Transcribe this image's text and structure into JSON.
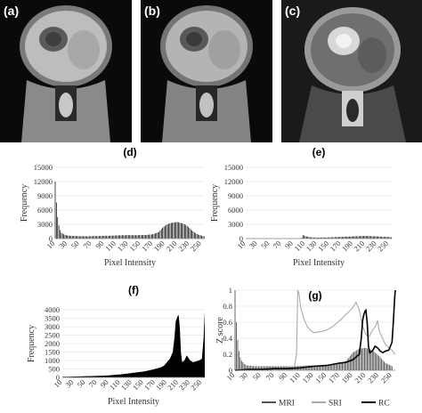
{
  "image_panels": [
    {
      "label": "(a)",
      "style": "mri"
    },
    {
      "label": "(b)",
      "style": "sri"
    },
    {
      "label": "(c)",
      "style": "rc"
    }
  ],
  "colors": {
    "histogram_fill": "#000000",
    "zscore_mri": "#555555",
    "zscore_sri": "#aaaaaa",
    "zscore_rc": "#000000",
    "gridline": "#d9d9d9",
    "axis_text": "#333333"
  },
  "chart_data": [
    {
      "id": "d",
      "type": "bar",
      "label": "(d)",
      "xlabel": "Pixel Intensity",
      "ylabel": "Frequency",
      "ylim": [
        0,
        15000
      ],
      "yticks": [
        0,
        3000,
        6000,
        9000,
        12000,
        15000
      ],
      "xlim": [
        10,
        255
      ],
      "xticks": [
        "10",
        "30",
        "50",
        "70",
        "90",
        "110",
        "130",
        "150",
        "170",
        "190",
        "210",
        "230",
        "250"
      ],
      "grid": true,
      "values": [
        [
          10,
          12000
        ],
        [
          12,
          7600
        ],
        [
          14,
          4500
        ],
        [
          16,
          2800
        ],
        [
          18,
          1800
        ],
        [
          20,
          1200
        ],
        [
          24,
          900
        ],
        [
          28,
          700
        ],
        [
          32,
          600
        ],
        [
          40,
          550
        ],
        [
          50,
          500
        ],
        [
          60,
          480
        ],
        [
          70,
          500
        ],
        [
          80,
          520
        ],
        [
          90,
          560
        ],
        [
          100,
          600
        ],
        [
          110,
          650
        ],
        [
          120,
          700
        ],
        [
          130,
          720
        ],
        [
          140,
          700
        ],
        [
          150,
          720
        ],
        [
          160,
          760
        ],
        [
          170,
          900
        ],
        [
          180,
          1400
        ],
        [
          185,
          2200
        ],
        [
          190,
          2700
        ],
        [
          195,
          3100
        ],
        [
          200,
          3300
        ],
        [
          205,
          3400
        ],
        [
          210,
          3500
        ],
        [
          215,
          3300
        ],
        [
          220,
          3100
        ],
        [
          225,
          2800
        ],
        [
          230,
          2200
        ],
        [
          235,
          1600
        ],
        [
          240,
          1100
        ],
        [
          245,
          800
        ],
        [
          250,
          600
        ],
        [
          255,
          400
        ]
      ]
    },
    {
      "id": "e",
      "type": "bar",
      "label": "(e)",
      "xlabel": "Pixel Intensity",
      "ylabel": "Frequency",
      "ylim": [
        0,
        15000
      ],
      "yticks": [
        0,
        3000,
        6000,
        9000,
        12000,
        15000
      ],
      "xlim": [
        10,
        255
      ],
      "xticks": [
        "10",
        "30",
        "50",
        "70",
        "90",
        "110",
        "130",
        "150",
        "170",
        "190",
        "210",
        "230",
        "250"
      ],
      "grid": true,
      "values": [
        [
          10,
          0
        ],
        [
          100,
          0
        ],
        [
          104,
          150
        ],
        [
          106,
          700
        ],
        [
          108,
          650
        ],
        [
          110,
          500
        ],
        [
          115,
          350
        ],
        [
          120,
          250
        ],
        [
          130,
          200
        ],
        [
          140,
          220
        ],
        [
          150,
          250
        ],
        [
          160,
          300
        ],
        [
          170,
          350
        ],
        [
          180,
          400
        ],
        [
          190,
          450
        ],
        [
          200,
          500
        ],
        [
          210,
          550
        ],
        [
          220,
          500
        ],
        [
          230,
          450
        ],
        [
          240,
          380
        ],
        [
          250,
          320
        ],
        [
          255,
          280
        ]
      ]
    },
    {
      "id": "f",
      "type": "area",
      "label": "(f)",
      "xlabel": "Pixel Intensity",
      "ylabel": "Frequency",
      "ylim": [
        0,
        4000
      ],
      "yticks": [
        0,
        500,
        1000,
        1500,
        2000,
        2500,
        3000,
        3500,
        4000
      ],
      "xlim": [
        10,
        255
      ],
      "xticks": [
        "10",
        "30",
        "50",
        "70",
        "90",
        "110",
        "130",
        "150",
        "170",
        "190",
        "210",
        "230",
        "250"
      ],
      "grid": true,
      "values": [
        [
          10,
          40
        ],
        [
          20,
          40
        ],
        [
          30,
          50
        ],
        [
          40,
          60
        ],
        [
          50,
          70
        ],
        [
          60,
          80
        ],
        [
          70,
          90
        ],
        [
          80,
          100
        ],
        [
          90,
          120
        ],
        [
          100,
          150
        ],
        [
          110,
          180
        ],
        [
          120,
          220
        ],
        [
          130,
          260
        ],
        [
          140,
          300
        ],
        [
          150,
          350
        ],
        [
          160,
          420
        ],
        [
          170,
          500
        ],
        [
          180,
          600
        ],
        [
          185,
          700
        ],
        [
          190,
          900
        ],
        [
          195,
          1100
        ],
        [
          200,
          1500
        ],
        [
          203,
          2400
        ],
        [
          205,
          3300
        ],
        [
          208,
          3600
        ],
        [
          210,
          3700
        ],
        [
          212,
          3000
        ],
        [
          214,
          1500
        ],
        [
          216,
          900
        ],
        [
          220,
          1000
        ],
        [
          224,
          1300
        ],
        [
          226,
          1200
        ],
        [
          230,
          1000
        ],
        [
          235,
          900
        ],
        [
          240,
          950
        ],
        [
          245,
          1000
        ],
        [
          250,
          1100
        ],
        [
          253,
          2300
        ],
        [
          255,
          3900
        ]
      ]
    },
    {
      "id": "g",
      "type": "line",
      "label": "(g)",
      "ylabel": "Z score",
      "ylim": [
        0,
        1
      ],
      "yticks": [
        0,
        0.2,
        0.4,
        0.6,
        0.8,
        1
      ],
      "xlim": [
        10,
        255
      ],
      "xticks": [
        "10",
        "30",
        "50",
        "70",
        "90",
        "110",
        "130",
        "150",
        "170",
        "190",
        "210",
        "230",
        "250"
      ],
      "grid": true,
      "legend_position": "bottom",
      "series": [
        {
          "name": "MRI",
          "style": "bars",
          "values": [
            [
              10,
              1.0
            ],
            [
              12,
              0.6
            ],
            [
              14,
              0.38
            ],
            [
              16,
              0.24
            ],
            [
              18,
              0.16
            ],
            [
              20,
              0.12
            ],
            [
              24,
              0.08
            ],
            [
              28,
              0.06
            ],
            [
              40,
              0.05
            ],
            [
              60,
              0.05
            ],
            [
              80,
              0.05
            ],
            [
              100,
              0.05
            ],
            [
              120,
              0.06
            ],
            [
              140,
              0.06
            ],
            [
              160,
              0.07
            ],
            [
              170,
              0.08
            ],
            [
              180,
              0.12
            ],
            [
              190,
              0.22
            ],
            [
              200,
              0.27
            ],
            [
              210,
              0.28
            ],
            [
              220,
              0.25
            ],
            [
              230,
              0.18
            ],
            [
              240,
              0.09
            ],
            [
              250,
              0.05
            ]
          ]
        },
        {
          "name": "SRI",
          "style": "line",
          "values": [
            [
              10,
              0
            ],
            [
              100,
              0
            ],
            [
              104,
              0.2
            ],
            [
              106,
              1.0
            ],
            [
              108,
              0.95
            ],
            [
              110,
              0.8
            ],
            [
              115,
              0.65
            ],
            [
              120,
              0.55
            ],
            [
              125,
              0.5
            ],
            [
              130,
              0.47
            ],
            [
              140,
              0.48
            ],
            [
              150,
              0.5
            ],
            [
              160,
              0.55
            ],
            [
              170,
              0.62
            ],
            [
              180,
              0.7
            ],
            [
              190,
              0.78
            ],
            [
              195,
              0.85
            ],
            [
              200,
              0.75
            ],
            [
              205,
              0.55
            ],
            [
              210,
              0.45
            ],
            [
              215,
              0.42
            ],
            [
              220,
              0.5
            ],
            [
              225,
              0.55
            ],
            [
              228,
              0.62
            ],
            [
              230,
              0.5
            ],
            [
              240,
              0.32
            ],
            [
              250,
              0.25
            ],
            [
              255,
              0.2
            ]
          ]
        },
        {
          "name": "RC",
          "style": "line",
          "values": [
            [
              10,
              0
            ],
            [
              30,
              0.01
            ],
            [
              50,
              0.01
            ],
            [
              70,
              0.02
            ],
            [
              90,
              0.02
            ],
            [
              110,
              0.03
            ],
            [
              130,
              0.05
            ],
            [
              150,
              0.06
            ],
            [
              170,
              0.09
            ],
            [
              180,
              0.1
            ],
            [
              190,
              0.13
            ],
            [
              200,
              0.2
            ],
            [
              203,
              0.4
            ],
            [
              205,
              0.62
            ],
            [
              207,
              0.7
            ],
            [
              209,
              0.74
            ],
            [
              210,
              0.75
            ],
            [
              212,
              0.6
            ],
            [
              214,
              0.3
            ],
            [
              216,
              0.22
            ],
            [
              220,
              0.24
            ],
            [
              224,
              0.3
            ],
            [
              228,
              0.28
            ],
            [
              232,
              0.24
            ],
            [
              236,
              0.22
            ],
            [
              240,
              0.24
            ],
            [
              245,
              0.25
            ],
            [
              250,
              0.35
            ],
            [
              252,
              0.6
            ],
            [
              254,
              0.9
            ],
            [
              255,
              1.0
            ]
          ]
        }
      ]
    }
  ]
}
